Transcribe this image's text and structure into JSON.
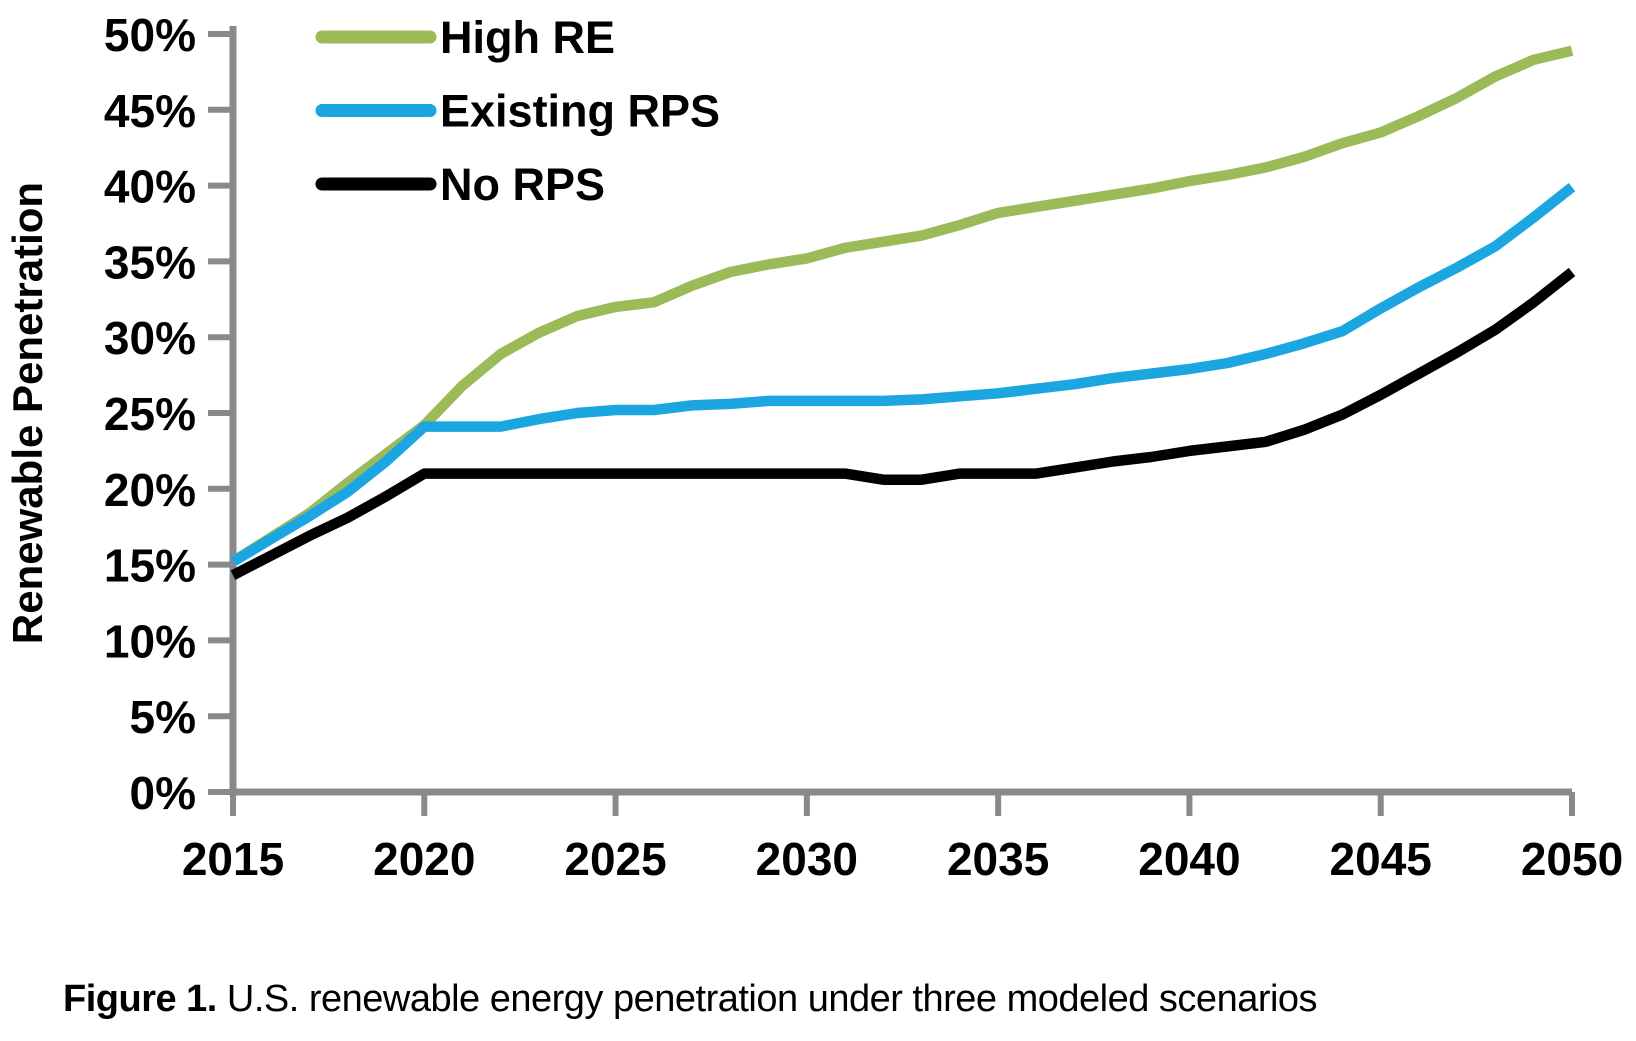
{
  "figure": {
    "caption_label": "Figure 1.",
    "caption_text": "U.S. renewable energy penetration under three modeled scenarios"
  },
  "chart_data": {
    "type": "line",
    "title": "",
    "xlabel": "",
    "ylabel": "Renewable Penetration",
    "xlim": [
      2015,
      2050
    ],
    "ylim": [
      0,
      50
    ],
    "grid": false,
    "legend_position": "inside-top-left",
    "colors": {
      "axis": "#898989",
      "text": "#000000",
      "background": "#FFFFFF"
    },
    "x_ticks": [
      {
        "value": 2015,
        "label": "2015"
      },
      {
        "value": 2020,
        "label": "2020"
      },
      {
        "value": 2025,
        "label": "2025"
      },
      {
        "value": 2030,
        "label": "2030"
      },
      {
        "value": 2035,
        "label": "2035"
      },
      {
        "value": 2040,
        "label": "2040"
      },
      {
        "value": 2045,
        "label": "2045"
      },
      {
        "value": 2050,
        "label": "2050"
      }
    ],
    "y_ticks": [
      {
        "value": 0,
        "label": "0%"
      },
      {
        "value": 5,
        "label": "5%"
      },
      {
        "value": 10,
        "label": "10%"
      },
      {
        "value": 15,
        "label": "15%"
      },
      {
        "value": 20,
        "label": "20%"
      },
      {
        "value": 25,
        "label": "25%"
      },
      {
        "value": 30,
        "label": "30%"
      },
      {
        "value": 35,
        "label": "35%"
      },
      {
        "value": 40,
        "label": "40%"
      },
      {
        "value": 45,
        "label": "45%"
      },
      {
        "value": 50,
        "label": "50%"
      }
    ],
    "x": [
      2015,
      2016,
      2017,
      2018,
      2019,
      2020,
      2021,
      2022,
      2023,
      2024,
      2025,
      2026,
      2027,
      2028,
      2029,
      2030,
      2031,
      2032,
      2033,
      2034,
      2035,
      2036,
      2037,
      2038,
      2039,
      2040,
      2041,
      2042,
      2043,
      2044,
      2045,
      2046,
      2047,
      2048,
      2049,
      2050
    ],
    "series": [
      {
        "name": "High RE",
        "color": "#9BBB59",
        "values": [
          15.2,
          16.8,
          18.4,
          20.4,
          22.3,
          24.2,
          26.8,
          28.9,
          30.3,
          31.4,
          32.0,
          32.3,
          33.4,
          34.3,
          34.8,
          35.2,
          35.9,
          36.3,
          36.7,
          37.4,
          38.2,
          38.6,
          39.0,
          39.4,
          39.8,
          40.3,
          40.7,
          41.2,
          41.9,
          42.8,
          43.5,
          44.6,
          45.8,
          47.2,
          48.3,
          48.9
        ]
      },
      {
        "name": "Existing RPS",
        "color": "#1BA6E2",
        "values": [
          15.2,
          16.7,
          18.2,
          19.8,
          21.8,
          24.1,
          24.1,
          24.1,
          24.6,
          25.0,
          25.2,
          25.2,
          25.5,
          25.6,
          25.8,
          25.8,
          25.8,
          25.8,
          25.9,
          26.1,
          26.3,
          26.6,
          26.9,
          27.3,
          27.6,
          27.9,
          28.3,
          28.9,
          29.6,
          30.4,
          31.9,
          33.3,
          34.6,
          36.0,
          37.9,
          39.9
        ]
      },
      {
        "name": "No RPS",
        "color": "#000000",
        "values": [
          14.3,
          15.6,
          16.9,
          18.1,
          19.5,
          21.0,
          21.0,
          21.0,
          21.0,
          21.0,
          21.0,
          21.0,
          21.0,
          21.0,
          21.0,
          21.0,
          21.0,
          20.6,
          20.6,
          21.0,
          21.0,
          21.0,
          21.4,
          21.8,
          22.1,
          22.5,
          22.8,
          23.1,
          23.9,
          24.9,
          26.2,
          27.6,
          29.0,
          30.5,
          32.3,
          34.3
        ]
      }
    ]
  }
}
